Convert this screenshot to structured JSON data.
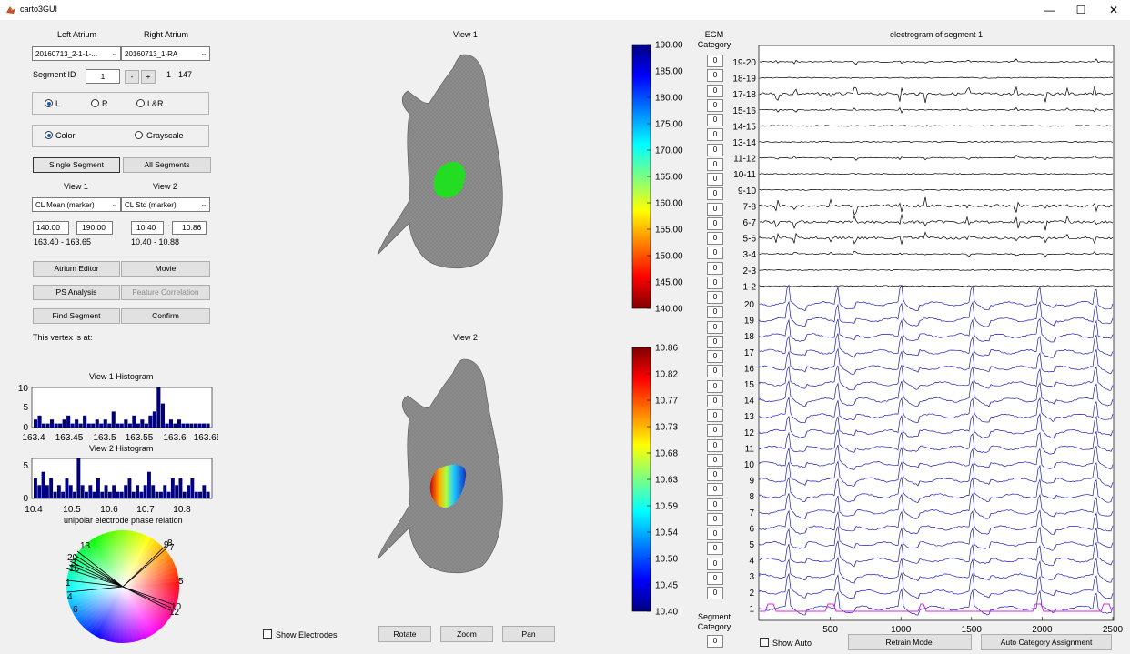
{
  "window": {
    "title": "carto3GUI",
    "minimize": "—",
    "maximize": "☐",
    "close": "✕"
  },
  "atrium": {
    "left_label": "Left Atrium",
    "right_label": "Right Atrium",
    "left_value": "20160713_2-1-1-...",
    "right_value": "20160713_1-RA"
  },
  "segment": {
    "label": "Segment ID",
    "value": "1",
    "minus": "-",
    "plus": "+",
    "range": "1 - 147"
  },
  "side": {
    "options": [
      "L",
      "R",
      "L&R"
    ],
    "selected": "L"
  },
  "colormode": {
    "options": [
      "Color",
      "Grayscale"
    ],
    "selected": "Color"
  },
  "segment_buttons": {
    "single": "Single Segment",
    "all": "All Segments"
  },
  "views": {
    "view1_label": "View 1",
    "view2_label": "View 2",
    "view1_value": "CL Mean (marker)",
    "view2_value": "CL Std (marker)",
    "v1_min": "140.00",
    "v1_max": "190.00",
    "v1_range": "163.40 - 163.65",
    "v2_min": "10.40",
    "v2_max": "10.86",
    "v2_range": "10.40 - 10.88",
    "dash": "-"
  },
  "action_buttons": {
    "atrium_editor": "Atrium Editor",
    "movie": "Movie",
    "ps_analysis": "PS Analysis",
    "feature_correlation": "Feature Correlation",
    "find_segment": "Find Segment",
    "confirm": "Confirm"
  },
  "vertex_text": "This vertex is at:",
  "hist1": {
    "title": "View 1 Histogram",
    "yticks": [
      "10",
      "5",
      "0"
    ],
    "xticks": [
      "163.4",
      "163.45",
      "163.5",
      "163.55",
      "163.6",
      "163.65"
    ],
    "counts": [
      2,
      3,
      1,
      1,
      2,
      1,
      1,
      2,
      3,
      1,
      2,
      1,
      3,
      1,
      1,
      2,
      1,
      2,
      1,
      4,
      1,
      1,
      2,
      1,
      3,
      1,
      2,
      1,
      3,
      4,
      10,
      6,
      1,
      2,
      1,
      2,
      1,
      1,
      1,
      1,
      1,
      1,
      1
    ]
  },
  "hist2": {
    "title": "View 2 Histogram",
    "yticks": [
      "5",
      "0"
    ],
    "xticks": [
      "10.4",
      "10.5",
      "10.6",
      "10.7",
      "10.8"
    ],
    "counts": [
      3,
      2,
      4,
      2,
      3,
      1,
      2,
      1,
      3,
      2,
      1,
      6,
      2,
      1,
      2,
      1,
      3,
      1,
      2,
      1,
      2,
      1,
      1,
      2,
      3,
      1,
      2,
      1,
      2,
      4,
      2,
      1,
      1,
      2,
      1,
      3,
      2,
      3,
      1,
      2,
      3,
      1,
      1,
      2,
      1
    ]
  },
  "phase": {
    "title": "unipolar electrode phase relation",
    "labels": [
      "13",
      "9",
      "8",
      "7",
      "3",
      "5",
      "1",
      "4",
      "6",
      "10",
      "12",
      "16",
      "20"
    ]
  },
  "center_views": {
    "view1_title": "View 1",
    "view2_title": "View 2"
  },
  "colorbar1": {
    "ticks": [
      "190.00",
      "185.00",
      "180.00",
      "175.00",
      "170.00",
      "165.00",
      "160.00",
      "155.00",
      "150.00",
      "145.00",
      "140.00"
    ]
  },
  "colorbar2": {
    "ticks": [
      "10.86",
      "10.82",
      "10.77",
      "10.73",
      "10.68",
      "10.63",
      "10.59",
      "10.54",
      "10.50",
      "10.45",
      "10.40"
    ]
  },
  "bottom_controls": {
    "show_electrodes": "Show Electrodes",
    "rotate": "Rotate",
    "zoom": "Zoom",
    "pan": "Pan"
  },
  "egm": {
    "category_label": "EGM\nCategory",
    "category_values": [
      "0",
      "0",
      "0",
      "0",
      "0",
      "0",
      "0",
      "0",
      "0",
      "0",
      "0",
      "0",
      "0",
      "0",
      "0",
      "0",
      "0",
      "0",
      "0",
      "0",
      "0",
      "0",
      "0",
      "0",
      "0",
      "0",
      "0",
      "0",
      "0",
      "0",
      "0",
      "0",
      "0",
      "0",
      "0",
      "0",
      "0"
    ],
    "segment_category_label": "Segment\nCategory",
    "segment_category_value": "0",
    "plot_title": "electrogram of segment 1",
    "bipolar_labels": [
      "19-20",
      "18-19",
      "17-18",
      "15-16",
      "14-15",
      "13-14",
      "11-12",
      "10-11",
      "9-10",
      "7-8",
      "6-7",
      "5-6",
      "3-4",
      "2-3",
      "1-2"
    ],
    "unipolar_labels": [
      "20",
      "19",
      "18",
      "17",
      "16",
      "15",
      "14",
      "13",
      "12",
      "11",
      "10",
      "9",
      "8",
      "7",
      "6",
      "5",
      "4",
      "3",
      "2",
      "1"
    ],
    "xticks": [
      "500",
      "1000",
      "1500",
      "2000",
      "2500"
    ],
    "show_auto": "Show Auto",
    "retrain": "Retrain Model",
    "auto_assign": "Auto Category Assignment"
  },
  "colors": {
    "bipolar": "#000000",
    "unipolar": "#1f1fb4",
    "magenta": "#e020e0",
    "hist": "#00007f",
    "patch": "#1fe01f"
  }
}
